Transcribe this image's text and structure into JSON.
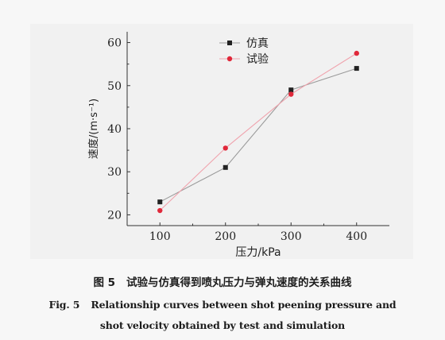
{
  "chart_data": {
    "type": "line",
    "x": [
      100,
      200,
      300,
      400
    ],
    "xlabel": "压力/kPa",
    "ylabel": "速度/(m·s⁻¹)",
    "xlim": [
      50,
      450
    ],
    "ylim": [
      17.5,
      62.5
    ],
    "xticks": [
      100,
      200,
      300,
      400
    ],
    "yticks": [
      20,
      30,
      40,
      50,
      60
    ],
    "grid": false,
    "legend_position": "top-left",
    "series": [
      {
        "name": "仿真",
        "color": "#222222",
        "line_color": "#9a9a9a",
        "marker": "square",
        "values": [
          23,
          31,
          49,
          54
        ]
      },
      {
        "name": "试验",
        "color": "#e0283a",
        "line_color": "#f0a3ad",
        "marker": "circle",
        "values": [
          21,
          35.5,
          48,
          57.5
        ]
      }
    ]
  },
  "caption": {
    "cn_label": "图 5",
    "cn_text": "试验与仿真得到喷丸压力与弹丸速度的关系曲线",
    "en_label": "Fig. 5",
    "en_line1": "Relationship curves between shot peening pressure and",
    "en_line2": "shot velocity obtained by test and simulation"
  }
}
